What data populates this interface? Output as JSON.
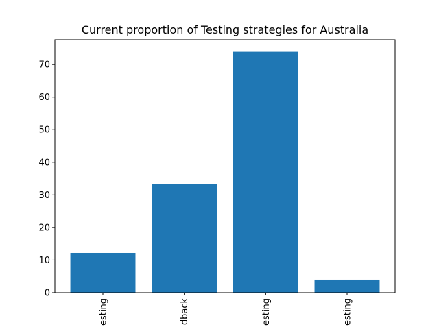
{
  "chart_data": {
    "type": "bar",
    "title": "Current proportion of Testing strategies for Australia",
    "xlabel": "",
    "ylabel": "",
    "categories": [
      "esting",
      "dback",
      "esting",
      "esting"
    ],
    "values": [
      12.2,
      33.3,
      73.9,
      4.0
    ],
    "ylim": [
      0,
      77.6
    ],
    "yticks": [
      0,
      10,
      20,
      30,
      40,
      50,
      60,
      70
    ],
    "bar_color": "#1f77b4",
    "grid": false,
    "legend": "none"
  }
}
